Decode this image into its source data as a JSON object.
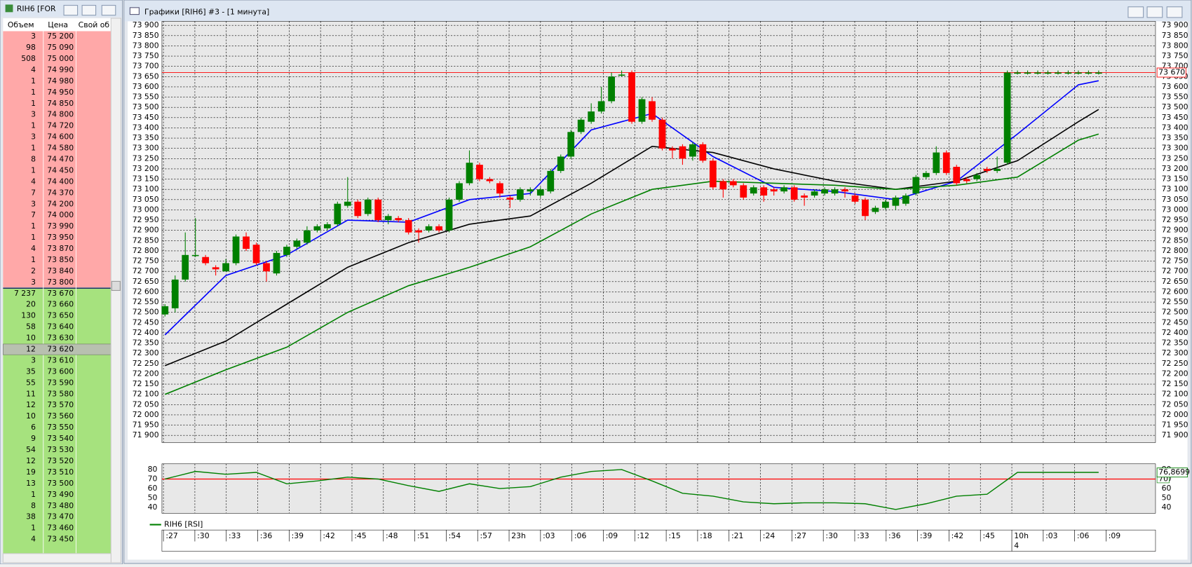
{
  "windows": {
    "book_title": "RIH6 [FOR",
    "chart_title": "Графики [RIH6] #3 - [1 минута]"
  },
  "order_book": {
    "header": [
      "Объем",
      "Цена",
      "Свой об"
    ],
    "asks": [
      [
        "3",
        "75 200"
      ],
      [
        "98",
        "75 090"
      ],
      [
        "508",
        "75 000"
      ],
      [
        "4",
        "74 990"
      ],
      [
        "1",
        "74 980"
      ],
      [
        "1",
        "74 950"
      ],
      [
        "1",
        "74 850"
      ],
      [
        "3",
        "74 800"
      ],
      [
        "1",
        "74 720"
      ],
      [
        "3",
        "74 600"
      ],
      [
        "1",
        "74 580"
      ],
      [
        "8",
        "74 470"
      ],
      [
        "1",
        "74 450"
      ],
      [
        "4",
        "74 400"
      ],
      [
        "7",
        "74 370"
      ],
      [
        "3",
        "74 200"
      ],
      [
        "7",
        "74 000"
      ],
      [
        "1",
        "73 990"
      ],
      [
        "1",
        "73 950"
      ],
      [
        "4",
        "73 870"
      ],
      [
        "1",
        "73 850"
      ],
      [
        "2",
        "73 840"
      ],
      [
        "3",
        "73 800"
      ]
    ],
    "bids": [
      [
        "7 237",
        "73 670"
      ],
      [
        "20",
        "73 660"
      ],
      [
        "130",
        "73 650"
      ],
      [
        "58",
        "73 640"
      ],
      [
        "10",
        "73 630"
      ],
      [
        "12",
        "73 620"
      ],
      [
        "3",
        "73 610"
      ],
      [
        "35",
        "73 600"
      ],
      [
        "55",
        "73 590"
      ],
      [
        "11",
        "73 580"
      ],
      [
        "12",
        "73 570"
      ],
      [
        "10",
        "73 560"
      ],
      [
        "6",
        "73 550"
      ],
      [
        "9",
        "73 540"
      ],
      [
        "54",
        "73 530"
      ],
      [
        "12",
        "73 520"
      ],
      [
        "19",
        "73 510"
      ],
      [
        "13",
        "73 500"
      ],
      [
        "1",
        "73 490"
      ],
      [
        "8",
        "73 480"
      ],
      [
        "38",
        "73 470"
      ],
      [
        "1",
        "73 460"
      ],
      [
        "4",
        "73 450"
      ]
    ]
  },
  "chart_data": [
    {
      "type": "candlestick",
      "up_color": "#008000",
      "down_color": "#ff0000",
      "grid": true,
      "candles": [
        [
          72490,
          72540,
          72480,
          72530
        ],
        [
          72520,
          72680,
          72500,
          72660
        ],
        [
          72660,
          72890,
          72650,
          72780
        ],
        [
          72780,
          72960,
          72770,
          72780
        ],
        [
          72770,
          72780,
          72730,
          72740
        ],
        [
          72720,
          72730,
          72680,
          72710
        ],
        [
          72700,
          72760,
          72700,
          72740
        ],
        [
          72740,
          72880,
          72730,
          72870
        ],
        [
          72870,
          72890,
          72800,
          72810
        ],
        [
          72830,
          72840,
          72730,
          72740
        ],
        [
          72740,
          72750,
          72650,
          72700
        ],
        [
          72690,
          72800,
          72680,
          72790
        ],
        [
          72780,
          72830,
          72770,
          72820
        ],
        [
          72820,
          72860,
          72810,
          72850
        ],
        [
          72840,
          72920,
          72830,
          72900
        ],
        [
          72900,
          72930,
          72890,
          72920
        ],
        [
          72910,
          72940,
          72900,
          72930
        ],
        [
          72930,
          73040,
          72920,
          73030
        ],
        [
          73020,
          73160,
          73010,
          73040
        ],
        [
          73040,
          73050,
          72960,
          72970
        ],
        [
          72980,
          73060,
          72970,
          73050
        ],
        [
          73050,
          73060,
          72940,
          72950
        ],
        [
          72950,
          72980,
          72930,
          72970
        ],
        [
          72960,
          72970,
          72940,
          72950
        ],
        [
          72950,
          72960,
          72880,
          72890
        ],
        [
          72900,
          72910,
          72840,
          72890
        ],
        [
          72900,
          72930,
          72890,
          72920
        ],
        [
          72920,
          72930,
          72890,
          72900
        ],
        [
          72900,
          73060,
          72890,
          73050
        ],
        [
          73050,
          73140,
          73040,
          73130
        ],
        [
          73130,
          73290,
          73120,
          73230
        ],
        [
          73220,
          73230,
          73140,
          73150
        ],
        [
          73150,
          73160,
          73130,
          73140
        ],
        [
          73130,
          73140,
          73060,
          73080
        ],
        [
          73060,
          73070,
          73010,
          73050
        ],
        [
          73050,
          73110,
          73040,
          73100
        ],
        [
          73090,
          73110,
          73070,
          73100
        ],
        [
          73070,
          73110,
          73060,
          73100
        ],
        [
          73090,
          73200,
          73080,
          73190
        ],
        [
          73190,
          73270,
          73180,
          73260
        ],
        [
          73260,
          73390,
          73250,
          73380
        ],
        [
          73380,
          73450,
          73370,
          73440
        ],
        [
          73430,
          73520,
          73420,
          73480
        ],
        [
          73480,
          73600,
          73470,
          73530
        ],
        [
          73530,
          73670,
          73520,
          73650
        ],
        [
          73660,
          73680,
          73650,
          73660
        ],
        [
          73670,
          73680,
          73420,
          73430
        ],
        [
          73430,
          73550,
          73420,
          73540
        ],
        [
          73530,
          73550,
          73430,
          73440
        ],
        [
          73440,
          73450,
          73290,
          73300
        ],
        [
          73300,
          73310,
          73250,
          73290
        ],
        [
          73310,
          73320,
          73220,
          73250
        ],
        [
          73260,
          73330,
          73240,
          73320
        ],
        [
          73320,
          73330,
          73230,
          73240
        ],
        [
          73240,
          73250,
          73100,
          73110
        ],
        [
          73140,
          73150,
          73060,
          73100
        ],
        [
          73140,
          73150,
          73110,
          73120
        ],
        [
          73120,
          73130,
          73050,
          73060
        ],
        [
          73080,
          73120,
          73070,
          73110
        ],
        [
          73110,
          73120,
          73040,
          73070
        ],
        [
          73100,
          73110,
          73070,
          73090
        ],
        [
          73090,
          73120,
          73080,
          73110
        ],
        [
          73110,
          73120,
          73040,
          73050
        ],
        [
          73070,
          73080,
          73020,
          73060
        ],
        [
          73070,
          73100,
          73060,
          73090
        ],
        [
          73080,
          73110,
          73070,
          73100
        ],
        [
          73080,
          73110,
          73070,
          73100
        ],
        [
          73100,
          73110,
          73060,
          73090
        ],
        [
          73070,
          73080,
          73030,
          73040
        ],
        [
          73050,
          73060,
          72950,
          72970
        ],
        [
          72990,
          73020,
          72980,
          73010
        ],
        [
          73010,
          73050,
          73000,
          73040
        ],
        [
          73020,
          73070,
          73000,
          73060
        ],
        [
          73030,
          73080,
          73020,
          73070
        ],
        [
          73080,
          73170,
          73070,
          73160
        ],
        [
          73160,
          73190,
          73150,
          73180
        ],
        [
          73180,
          73310,
          73170,
          73280
        ],
        [
          73280,
          73290,
          73170,
          73180
        ],
        [
          73210,
          73220,
          73120,
          73130
        ],
        [
          73150,
          73160,
          73130,
          73140
        ],
        [
          73150,
          73180,
          73140,
          73170
        ],
        [
          73200,
          73210,
          73180,
          73190
        ],
        [
          73190,
          73260,
          73180,
          73200
        ],
        [
          73230,
          73680,
          73220,
          73670
        ],
        [
          73670,
          73680,
          73660,
          73670
        ],
        [
          73670,
          73680,
          73660,
          73670
        ],
        [
          73670,
          73680,
          73660,
          73670
        ],
        [
          73670,
          73680,
          73660,
          73670
        ],
        [
          73670,
          73680,
          73660,
          73670
        ],
        [
          73670,
          73680,
          73660,
          73670
        ],
        [
          73670,
          73680,
          73660,
          73670
        ],
        [
          73670,
          73680,
          73660,
          73670
        ],
        [
          73670,
          73680,
          73660,
          73670
        ]
      ],
      "lines": [
        {
          "color": "#0000ff",
          "x": [
            0,
            6,
            12,
            18,
            24,
            30,
            36,
            42,
            48,
            54,
            60,
            66,
            72,
            78,
            84,
            90,
            92
          ],
          "values": [
            72390,
            72680,
            72780,
            72950,
            72940,
            73050,
            73080,
            73390,
            73470,
            73260,
            73110,
            73090,
            73050,
            73140,
            73370,
            73610,
            73630
          ]
        },
        {
          "color": "#000000",
          "x": [
            0,
            6,
            12,
            18,
            24,
            30,
            36,
            42,
            48,
            54,
            60,
            66,
            72,
            78,
            84,
            90,
            92
          ],
          "values": [
            72240,
            72360,
            72540,
            72720,
            72840,
            72930,
            72970,
            73130,
            73310,
            73280,
            73200,
            73140,
            73100,
            73140,
            73240,
            73430,
            73490
          ]
        },
        {
          "color": "#008000",
          "x": [
            0,
            6,
            12,
            18,
            24,
            30,
            36,
            42,
            48,
            54,
            60,
            66,
            72,
            78,
            84,
            90,
            92
          ],
          "values": [
            72100,
            72220,
            72330,
            72500,
            72630,
            72720,
            72820,
            72980,
            73100,
            73140,
            73130,
            73120,
            73100,
            73120,
            73160,
            73340,
            73370
          ]
        }
      ],
      "last_price": {
        "value": 73670,
        "label": "73 670"
      },
      "last_price_color": "#ff0000",
      "ylim": [
        71865,
        73920
      ],
      "yticks": [
        {
          "value": 71900,
          "label": "71 900"
        },
        {
          "value": 71950,
          "label": "71 950"
        },
        {
          "value": 72000,
          "label": "72 000"
        },
        {
          "value": 72050,
          "label": "72 050"
        },
        {
          "value": 72100,
          "label": "72 100"
        },
        {
          "value": 72150,
          "label": "72 150"
        },
        {
          "value": 72200,
          "label": "72 200"
        },
        {
          "value": 72250,
          "label": "72 250"
        },
        {
          "value": 72300,
          "label": "72 300"
        },
        {
          "value": 72350,
          "label": "72 350"
        },
        {
          "value": 72400,
          "label": "72 400"
        },
        {
          "value": 72450,
          "label": "72 450"
        },
        {
          "value": 72500,
          "label": "72 500"
        },
        {
          "value": 72550,
          "label": "72 550"
        },
        {
          "value": 72600,
          "label": "72 600"
        },
        {
          "value": 72650,
          "label": "72 650"
        },
        {
          "value": 72700,
          "label": "72 700"
        },
        {
          "value": 72750,
          "label": "72 750"
        },
        {
          "value": 72800,
          "label": "72 800"
        },
        {
          "value": 72850,
          "label": "72 850"
        },
        {
          "value": 72900,
          "label": "72 900"
        },
        {
          "value": 72950,
          "label": "72 950"
        },
        {
          "value": 73000,
          "label": "73 000"
        },
        {
          "value": 73050,
          "label": "73 050"
        },
        {
          "value": 73100,
          "label": "73 100"
        },
        {
          "value": 73150,
          "label": "73 150"
        },
        {
          "value": 73200,
          "label": "73 200"
        },
        {
          "value": 73250,
          "label": "73 250"
        },
        {
          "value": 73300,
          "label": "73 300"
        },
        {
          "value": 73350,
          "label": "73 350"
        },
        {
          "value": 73400,
          "label": "73 400"
        },
        {
          "value": 73450,
          "label": "73 450"
        },
        {
          "value": 73500,
          "label": "73 500"
        },
        {
          "value": 73550,
          "label": "73 550"
        },
        {
          "value": 73600,
          "label": "73 600"
        },
        {
          "value": 73650,
          "label": "73 650"
        },
        {
          "value": 73700,
          "label": "73 700"
        },
        {
          "value": 73750,
          "label": "73 750"
        },
        {
          "value": 73800,
          "label": "73 800"
        },
        {
          "value": 73850,
          "label": "73 850"
        },
        {
          "value": 73900,
          "label": "73 900"
        }
      ],
      "xticks": [
        ":27",
        ":30",
        ":33",
        ":36",
        ":39",
        ":42",
        ":45",
        ":48",
        ":51",
        ":54",
        ":57",
        "23h",
        ":03",
        ":06",
        ":09",
        ":12",
        ":15",
        ":18",
        ":21",
        ":24",
        ":27",
        ":30",
        ":33",
        ":36",
        ":39",
        ":42",
        ":45",
        "10h",
        ":03",
        ":06",
        ":09"
      ],
      "date_label": "4"
    },
    {
      "type": "line",
      "series": [
        {
          "name": "RIH6 [RSI]",
          "color": "#008000",
          "x": [
            0,
            3,
            6,
            9,
            12,
            15,
            18,
            21,
            24,
            27,
            30,
            33,
            36,
            39,
            42,
            45,
            48,
            51,
            54,
            57,
            60,
            63,
            66,
            69,
            72,
            75,
            78,
            81,
            84,
            87,
            90,
            92
          ],
          "values": [
            70,
            78,
            75,
            77,
            65,
            68,
            72,
            70,
            63,
            57,
            65,
            60,
            62,
            72,
            78,
            80,
            68,
            55,
            52,
            46,
            44,
            45,
            45,
            44,
            38,
            44,
            52,
            54,
            77,
            77,
            77,
            77
          ]
        }
      ],
      "ylim": [
        34,
        86
      ],
      "yticks": [
        40,
        50,
        60,
        70,
        80
      ],
      "level": {
        "value": 70,
        "label": "70"
      },
      "level_color": "#ff0000",
      "current": {
        "value": 76.8699,
        "label": "76,8699"
      }
    }
  ]
}
